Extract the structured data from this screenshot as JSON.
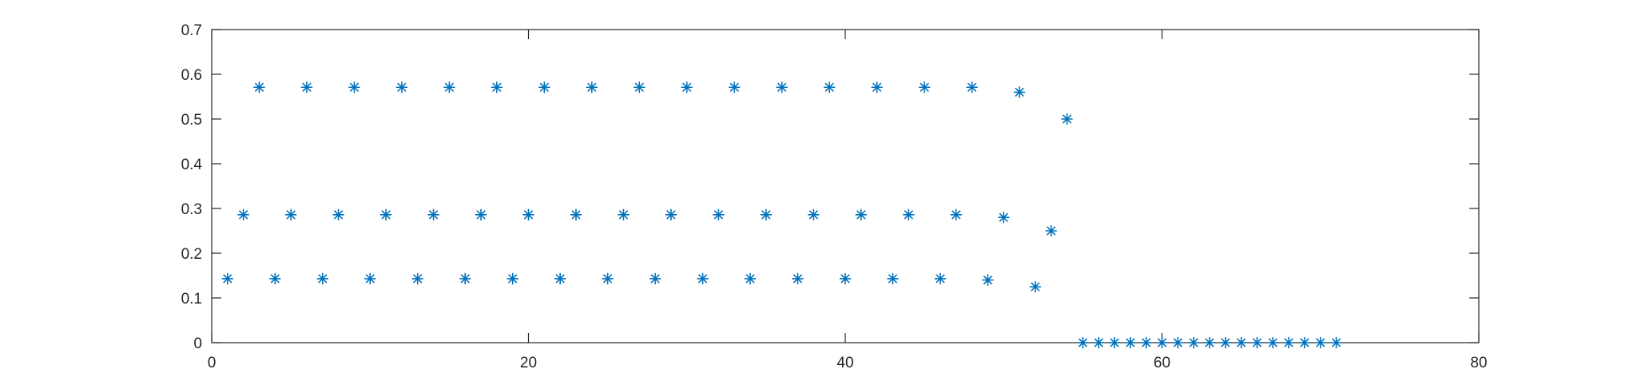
{
  "chart_data": {
    "type": "scatter",
    "title": "",
    "xlabel": "",
    "ylabel": "",
    "xlim": [
      0,
      80
    ],
    "ylim": [
      0,
      0.7
    ],
    "xticks": [
      0,
      20,
      40,
      60,
      80
    ],
    "yticks": [
      0,
      0.1,
      0.2,
      0.3,
      0.4,
      0.5,
      0.6,
      0.7
    ],
    "xtick_labels": [
      "0",
      "20",
      "40",
      "60",
      "80"
    ],
    "ytick_labels": [
      "0",
      "0.1",
      "0.2",
      "0.3",
      "0.4",
      "0.5",
      "0.6",
      "0.7"
    ],
    "grid": false,
    "box": true,
    "marker": "asterisk",
    "color": "#0072bd",
    "series": [
      {
        "x": [
          1,
          2,
          3,
          4,
          5,
          6,
          7,
          8,
          9,
          10,
          11,
          12,
          13,
          14,
          15,
          16,
          17,
          18,
          19,
          20,
          21,
          22,
          23,
          24,
          25,
          26,
          27,
          28,
          29,
          30,
          31,
          32,
          33,
          34,
          35,
          36,
          37,
          38,
          39,
          40,
          41,
          42,
          43,
          44,
          45,
          46,
          47,
          48,
          49,
          50,
          51,
          52,
          53,
          54,
          55,
          56,
          57,
          58,
          59,
          60,
          61,
          62,
          63,
          64,
          65,
          66,
          67,
          68,
          69,
          70,
          71
        ],
        "y": [
          0.143,
          0.286,
          0.571,
          0.143,
          0.286,
          0.571,
          0.143,
          0.286,
          0.571,
          0.143,
          0.286,
          0.571,
          0.143,
          0.286,
          0.571,
          0.143,
          0.286,
          0.571,
          0.143,
          0.286,
          0.571,
          0.143,
          0.286,
          0.571,
          0.143,
          0.286,
          0.571,
          0.143,
          0.286,
          0.571,
          0.143,
          0.286,
          0.571,
          0.143,
          0.286,
          0.571,
          0.143,
          0.286,
          0.571,
          0.143,
          0.286,
          0.571,
          0.143,
          0.286,
          0.571,
          0.143,
          0.286,
          0.571,
          0.14,
          0.28,
          0.56,
          0.125,
          0.25,
          0.5,
          0,
          0,
          0,
          0,
          0,
          0,
          0,
          0,
          0,
          0,
          0,
          0,
          0,
          0,
          0,
          0,
          0
        ]
      }
    ]
  }
}
